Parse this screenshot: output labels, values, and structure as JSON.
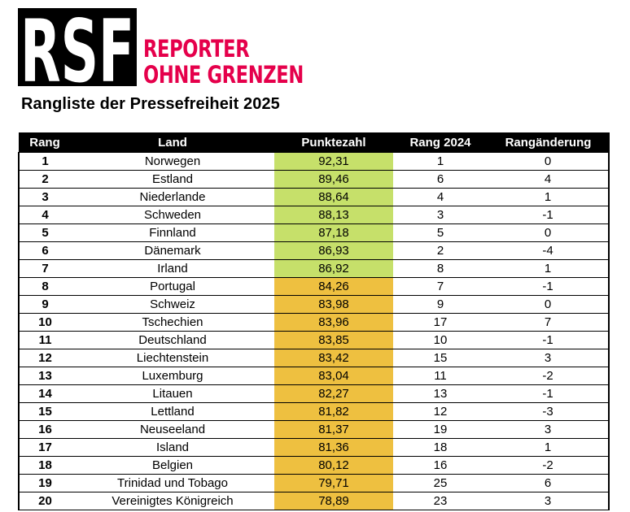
{
  "logo": {
    "mark": "RSF",
    "line1": "REPORTER",
    "line2": "OHNE GRENZEN",
    "brand_color": "#e5004b"
  },
  "title": "Rangliste der Pressefreiheit 2025",
  "table": {
    "headers": [
      "Rang",
      "Land",
      "Punktezahl",
      "Rang 2024",
      "Rangänderung"
    ],
    "score_colors": {
      "green": "#c6e06a",
      "orange": "#eec040"
    },
    "rows": [
      {
        "rank": "1",
        "country": "Norwegen",
        "score": "92,31",
        "rank2024": "1",
        "change": "0",
        "color": "green"
      },
      {
        "rank": "2",
        "country": "Estland",
        "score": "89,46",
        "rank2024": "6",
        "change": "4",
        "color": "green"
      },
      {
        "rank": "3",
        "country": "Niederlande",
        "score": "88,64",
        "rank2024": "4",
        "change": "1",
        "color": "green"
      },
      {
        "rank": "4",
        "country": "Schweden",
        "score": "88,13",
        "rank2024": "3",
        "change": "-1",
        "color": "green"
      },
      {
        "rank": "5",
        "country": "Finnland",
        "score": "87,18",
        "rank2024": "5",
        "change": "0",
        "color": "green"
      },
      {
        "rank": "6",
        "country": "Dänemark",
        "score": "86,93",
        "rank2024": "2",
        "change": "-4",
        "color": "green"
      },
      {
        "rank": "7",
        "country": "Irland",
        "score": "86,92",
        "rank2024": "8",
        "change": "1",
        "color": "green"
      },
      {
        "rank": "8",
        "country": "Portugal",
        "score": "84,26",
        "rank2024": "7",
        "change": "-1",
        "color": "orange"
      },
      {
        "rank": "9",
        "country": "Schweiz",
        "score": "83,98",
        "rank2024": "9",
        "change": "0",
        "color": "orange"
      },
      {
        "rank": "10",
        "country": "Tschechien",
        "score": "83,96",
        "rank2024": "17",
        "change": "7",
        "color": "orange"
      },
      {
        "rank": "11",
        "country": "Deutschland",
        "score": "83,85",
        "rank2024": "10",
        "change": "-1",
        "color": "orange"
      },
      {
        "rank": "12",
        "country": "Liechtenstein",
        "score": "83,42",
        "rank2024": "15",
        "change": "3",
        "color": "orange"
      },
      {
        "rank": "13",
        "country": "Luxemburg",
        "score": "83,04",
        "rank2024": "11",
        "change": "-2",
        "color": "orange"
      },
      {
        "rank": "14",
        "country": "Litauen",
        "score": "82,27",
        "rank2024": "13",
        "change": "-1",
        "color": "orange"
      },
      {
        "rank": "15",
        "country": "Lettland",
        "score": "81,82",
        "rank2024": "12",
        "change": "-3",
        "color": "orange"
      },
      {
        "rank": "16",
        "country": "Neuseeland",
        "score": "81,37",
        "rank2024": "19",
        "change": "3",
        "color": "orange"
      },
      {
        "rank": "17",
        "country": "Island",
        "score": "81,36",
        "rank2024": "18",
        "change": "1",
        "color": "orange"
      },
      {
        "rank": "18",
        "country": "Belgien",
        "score": "80,12",
        "rank2024": "16",
        "change": "-2",
        "color": "orange"
      },
      {
        "rank": "19",
        "country": "Trinidad und Tobago",
        "score": "79,71",
        "rank2024": "25",
        "change": "6",
        "color": "orange"
      },
      {
        "rank": "20",
        "country": "Vereinigtes Königreich",
        "score": "78,89",
        "rank2024": "23",
        "change": "3",
        "color": "orange"
      }
    ]
  }
}
